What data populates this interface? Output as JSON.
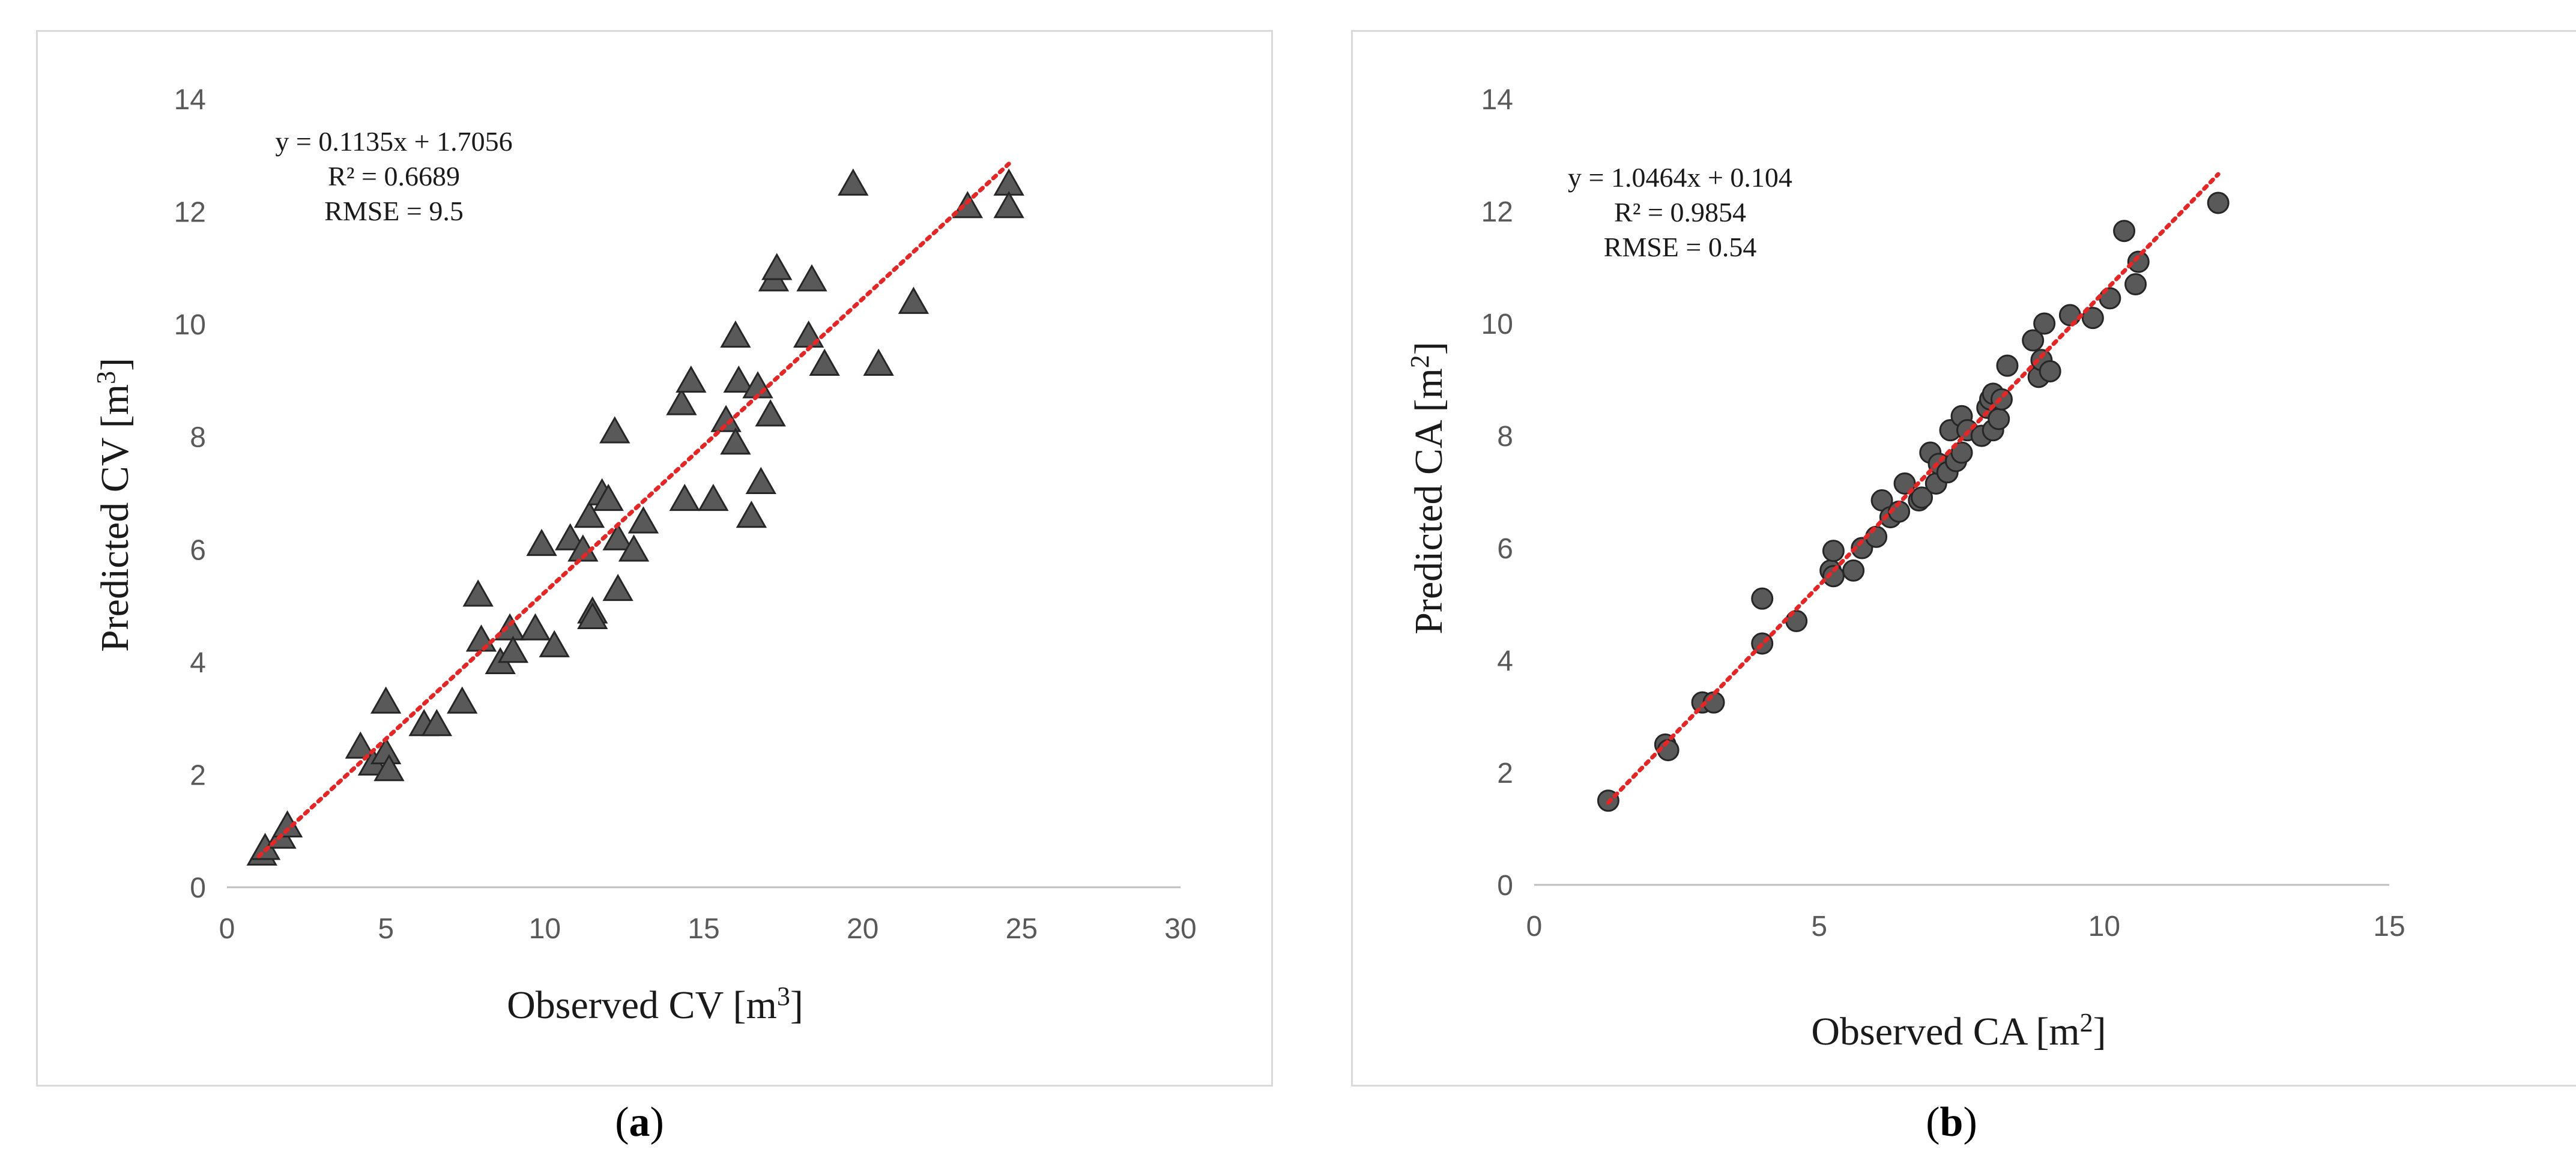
{
  "chart_data": [
    {
      "type": "scatter",
      "panel_label": "a",
      "xlabel": "Observed CV [m",
      "xlabel_sup": "3",
      "ylabel": "Predicted CV [m",
      "ylabel_sup": "3",
      "xlim": [
        0,
        30
      ],
      "ylim": [
        0,
        14
      ],
      "x_ticks": [
        "0",
        "5",
        "10",
        "15",
        "20",
        "25",
        "30"
      ],
      "y_ticks": [
        "0",
        "2",
        "4",
        "6",
        "8",
        "10",
        "12",
        "14"
      ],
      "marker": "triangle",
      "marker_color": "#595959",
      "trendline_color": "#e32626",
      "trendline_x": [
        1.0,
        24.6
      ],
      "annotations": [
        "y = 0.1135x + 1.7056",
        "R² = 0.6689",
        "RMSE = 9.5"
      ],
      "grid": false,
      "series": [
        {
          "points": [
            [
              1.1,
              0.6
            ],
            [
              1.2,
              0.7
            ],
            [
              1.7,
              0.9
            ],
            [
              1.9,
              1.1
            ],
            [
              4.2,
              2.5
            ],
            [
              4.6,
              2.2
            ],
            [
              5.0,
              2.4
            ],
            [
              5.1,
              2.1
            ],
            [
              5.0,
              3.3
            ],
            [
              6.2,
              2.9
            ],
            [
              6.6,
              2.9
            ],
            [
              7.4,
              3.3
            ],
            [
              7.9,
              5.2
            ],
            [
              8.0,
              4.4
            ],
            [
              8.6,
              4.0
            ],
            [
              8.9,
              4.6
            ],
            [
              9.0,
              4.2
            ],
            [
              9.7,
              4.6
            ],
            [
              9.9,
              6.1
            ],
            [
              10.3,
              4.3
            ],
            [
              10.8,
              6.2
            ],
            [
              11.2,
              6.0
            ],
            [
              11.4,
              6.6
            ],
            [
              11.5,
              4.9
            ],
            [
              11.5,
              4.8
            ],
            [
              11.8,
              7.0
            ],
            [
              12.0,
              6.9
            ],
            [
              12.2,
              8.1
            ],
            [
              12.3,
              6.2
            ],
            [
              12.3,
              5.3
            ],
            [
              12.8,
              6.0
            ],
            [
              13.1,
              6.5
            ],
            [
              14.3,
              8.6
            ],
            [
              14.4,
              6.9
            ],
            [
              14.6,
              9.0
            ],
            [
              15.3,
              6.9
            ],
            [
              15.7,
              8.3
            ],
            [
              16.0,
              9.8
            ],
            [
              16.0,
              7.9
            ],
            [
              16.1,
              9.0
            ],
            [
              16.5,
              6.6
            ],
            [
              16.7,
              8.9
            ],
            [
              16.8,
              7.2
            ],
            [
              17.1,
              8.4
            ],
            [
              17.2,
              10.8
            ],
            [
              17.3,
              11.0
            ],
            [
              18.3,
              9.8
            ],
            [
              18.4,
              10.8
            ],
            [
              18.8,
              9.3
            ],
            [
              19.7,
              12.5
            ],
            [
              20.5,
              9.3
            ],
            [
              21.6,
              10.4
            ],
            [
              23.3,
              12.1
            ],
            [
              24.6,
              12.5
            ],
            [
              24.6,
              12.1
            ]
          ]
        }
      ]
    },
    {
      "type": "scatter",
      "panel_label": "b",
      "xlabel": "Observed CA [m",
      "xlabel_sup": "2",
      "ylabel": "Predicted CA [m",
      "ylabel_sup": "2",
      "xlim": [
        0,
        15
      ],
      "ylim": [
        0,
        14
      ],
      "x_ticks": [
        "0",
        "5",
        "10",
        "15"
      ],
      "y_ticks": [
        "0",
        "2",
        "4",
        "6",
        "8",
        "10",
        "12",
        "14"
      ],
      "marker": "circle",
      "marker_color": "#595959",
      "trendline_color": "#e32626",
      "trendline_x": [
        1.3,
        12.0
      ],
      "annotations": [
        "y = 1.0464x + 0.104",
        "R² = 0.9854",
        "RMSE = 0.54"
      ],
      "grid": false,
      "series": [
        {
          "points": [
            [
              1.3,
              1.5
            ],
            [
              2.3,
              2.5
            ],
            [
              2.35,
              2.4
            ],
            [
              2.95,
              3.25
            ],
            [
              3.15,
              3.25
            ],
            [
              4.0,
              4.3
            ],
            [
              4.0,
              5.1
            ],
            [
              4.6,
              4.7
            ],
            [
              5.2,
              5.6
            ],
            [
              5.25,
              5.5
            ],
            [
              5.25,
              5.95
            ],
            [
              5.6,
              5.6
            ],
            [
              5.75,
              6.0
            ],
            [
              6.0,
              6.2
            ],
            [
              6.1,
              6.85
            ],
            [
              6.25,
              6.55
            ],
            [
              6.4,
              6.65
            ],
            [
              6.5,
              7.15
            ],
            [
              6.75,
              6.85
            ],
            [
              6.8,
              6.9
            ],
            [
              6.95,
              7.7
            ],
            [
              7.05,
              7.15
            ],
            [
              7.1,
              7.5
            ],
            [
              7.25,
              7.35
            ],
            [
              7.3,
              8.1
            ],
            [
              7.4,
              7.55
            ],
            [
              7.5,
              7.7
            ],
            [
              7.5,
              8.35
            ],
            [
              7.6,
              8.1
            ],
            [
              7.85,
              8.0
            ],
            [
              7.95,
              8.5
            ],
            [
              8.0,
              8.65
            ],
            [
              8.05,
              8.75
            ],
            [
              8.05,
              8.1
            ],
            [
              8.15,
              8.3
            ],
            [
              8.2,
              8.65
            ],
            [
              8.3,
              9.25
            ],
            [
              8.75,
              9.7
            ],
            [
              8.85,
              9.05
            ],
            [
              8.9,
              9.35
            ],
            [
              8.95,
              10.0
            ],
            [
              9.05,
              9.15
            ],
            [
              9.4,
              10.15
            ],
            [
              9.8,
              10.1
            ],
            [
              10.1,
              10.45
            ],
            [
              10.35,
              11.65
            ],
            [
              10.55,
              10.7
            ],
            [
              10.6,
              11.1
            ],
            [
              12.0,
              12.15
            ]
          ]
        }
      ]
    }
  ]
}
